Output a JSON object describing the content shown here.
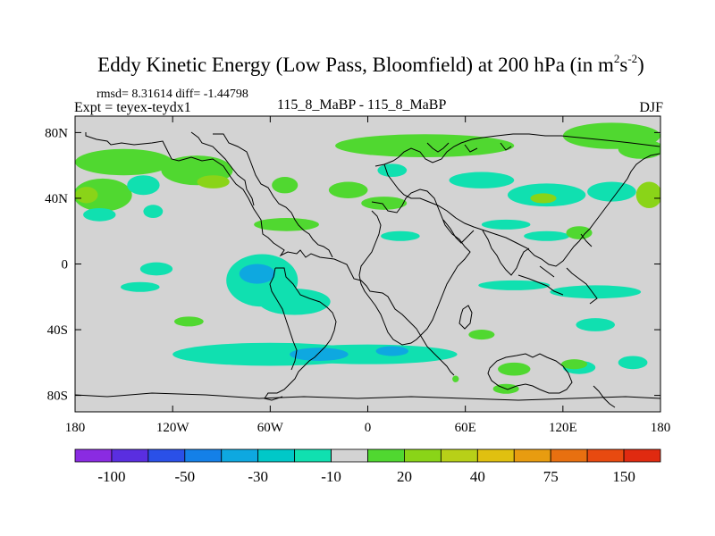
{
  "chart_data": {
    "type": "heatmap",
    "title_main": "Eddy Kinetic Energy (Low Pass, Bloomfield) at 200 hPa (in m",
    "title_sup1": "2",
    "title_mid": "s",
    "title_sup2": "-2",
    "title_end": ")",
    "stats": "rmsd= 8.31614 diff= -1.44798",
    "left_label": "Expt = teyex-teydx1",
    "center_label": "115_8_MaBP - 115_8_MaBP",
    "right_label": "DJF",
    "xlim": [
      -180,
      180
    ],
    "ylim": [
      -90,
      90
    ],
    "x_ticks": [
      {
        "value": -180,
        "label": "180"
      },
      {
        "value": -120,
        "label": "120W"
      },
      {
        "value": -60,
        "label": "60W"
      },
      {
        "value": 0,
        "label": "0"
      },
      {
        "value": 60,
        "label": "60E"
      },
      {
        "value": 120,
        "label": "120E"
      },
      {
        "value": 180,
        "label": "180"
      }
    ],
    "y_ticks": [
      {
        "value": 80,
        "label": "80N"
      },
      {
        "value": 40,
        "label": "40N"
      },
      {
        "value": 0,
        "label": "0"
      },
      {
        "value": -40,
        "label": "40S"
      },
      {
        "value": -80,
        "label": "80S"
      }
    ],
    "colorbar": {
      "colors": [
        "#8a2be2",
        "#5a2ee0",
        "#2a50e8",
        "#1480e8",
        "#0ea8e0",
        "#00c8c8",
        "#10e0b0",
        "#d3d3d3",
        "#50d830",
        "#8ad418",
        "#b8d018",
        "#e0c010",
        "#e89c10",
        "#e87010",
        "#e84a10",
        "#e02a10"
      ],
      "labels": [
        {
          "boundary": 1,
          "text": "-100"
        },
        {
          "boundary": 3,
          "text": "-50"
        },
        {
          "boundary": 5,
          "text": "-30"
        },
        {
          "boundary": 7,
          "text": "-10"
        },
        {
          "boundary": 9,
          "text": "20"
        },
        {
          "boundary": 11,
          "text": "40"
        },
        {
          "boundary": 13,
          "text": "75"
        },
        {
          "boundary": 15,
          "text": "150"
        }
      ]
    },
    "background_color": "#d3d3d3",
    "anomaly_regions": [
      {
        "lon": 35,
        "lat": 72,
        "rlon": 55,
        "rlat": 7,
        "color": "#50d830"
      },
      {
        "lon": 150,
        "lat": 78,
        "rlon": 30,
        "rlat": 8,
        "color": "#50d830"
      },
      {
        "lon": 168,
        "lat": 70,
        "rlon": 14,
        "rlat": 6,
        "color": "#50d830"
      },
      {
        "lon": -150,
        "lat": 62,
        "rlon": 30,
        "rlat": 8,
        "color": "#50d830"
      },
      {
        "lon": -105,
        "lat": 57,
        "rlon": 22,
        "rlat": 9,
        "color": "#50d830"
      },
      {
        "lon": -95,
        "lat": 50,
        "rlon": 10,
        "rlat": 4,
        "color": "#8ad418"
      },
      {
        "lon": -163,
        "lat": 42,
        "rlon": 18,
        "rlat": 10,
        "color": "#50d830"
      },
      {
        "lon": -173,
        "lat": 42,
        "rlon": 7,
        "rlat": 5,
        "color": "#8ad418"
      },
      {
        "lon": -138,
        "lat": 48,
        "rlon": 10,
        "rlat": 6,
        "color": "#10e0b0"
      },
      {
        "lon": -165,
        "lat": 30,
        "rlon": 10,
        "rlat": 4,
        "color": "#10e0b0"
      },
      {
        "lon": -132,
        "lat": 32,
        "rlon": 6,
        "rlat": 4,
        "color": "#10e0b0"
      },
      {
        "lon": -51,
        "lat": 48,
        "rlon": 8,
        "rlat": 5,
        "color": "#50d830"
      },
      {
        "lon": -12,
        "lat": 45,
        "rlon": 12,
        "rlat": 5,
        "color": "#50d830"
      },
      {
        "lon": 15,
        "lat": 57,
        "rlon": 9,
        "rlat": 4,
        "color": "#10e0b0"
      },
      {
        "lon": 70,
        "lat": 51,
        "rlon": 20,
        "rlat": 5,
        "color": "#10e0b0"
      },
      {
        "lon": 110,
        "lat": 42,
        "rlon": 24,
        "rlat": 7,
        "color": "#10e0b0"
      },
      {
        "lon": 108,
        "lat": 40,
        "rlon": 8,
        "rlat": 3,
        "color": "#8ad418"
      },
      {
        "lon": 150,
        "lat": 44,
        "rlon": 15,
        "rlat": 6,
        "color": "#10e0b0"
      },
      {
        "lon": 173,
        "lat": 42,
        "rlon": 8,
        "rlat": 8,
        "color": "#8ad418"
      },
      {
        "lon": -50,
        "lat": 24,
        "rlon": 20,
        "rlat": 4,
        "color": "#50d830"
      },
      {
        "lon": 10,
        "lat": 37,
        "rlon": 14,
        "rlat": 4,
        "color": "#50d830"
      },
      {
        "lon": 20,
        "lat": 17,
        "rlon": 12,
        "rlat": 3,
        "color": "#10e0b0"
      },
      {
        "lon": 110,
        "lat": 17,
        "rlon": 14,
        "rlat": 3,
        "color": "#10e0b0"
      },
      {
        "lon": 85,
        "lat": 24,
        "rlon": 15,
        "rlat": 3,
        "color": "#10e0b0"
      },
      {
        "lon": 130,
        "lat": 19,
        "rlon": 8,
        "rlat": 4,
        "color": "#50d830"
      },
      {
        "lon": -130,
        "lat": -3,
        "rlon": 10,
        "rlat": 4,
        "color": "#10e0b0"
      },
      {
        "lon": -140,
        "lat": -14,
        "rlon": 12,
        "rlat": 3,
        "color": "#10e0b0"
      },
      {
        "lon": -65,
        "lat": -10,
        "rlon": 22,
        "rlat": 16,
        "color": "#10e0b0"
      },
      {
        "lon": -68,
        "lat": -6,
        "rlon": 11,
        "rlat": 6,
        "color": "#0ea8e0"
      },
      {
        "lon": -45,
        "lat": -23,
        "rlon": 22,
        "rlat": 8,
        "color": "#10e0b0"
      },
      {
        "lon": -110,
        "lat": -35,
        "rlon": 9,
        "rlat": 3,
        "color": "#50d830"
      },
      {
        "lon": 90,
        "lat": -13,
        "rlon": 22,
        "rlat": 3,
        "color": "#10e0b0"
      },
      {
        "lon": 140,
        "lat": -17,
        "rlon": 28,
        "rlat": 4,
        "color": "#10e0b0"
      },
      {
        "lon": 140,
        "lat": -37,
        "rlon": 12,
        "rlat": 4,
        "color": "#10e0b0"
      },
      {
        "lon": 70,
        "lat": -43,
        "rlon": 8,
        "rlat": 3,
        "color": "#50d830"
      },
      {
        "lon": -60,
        "lat": -55,
        "rlon": 60,
        "rlat": 7,
        "color": "#10e0b0"
      },
      {
        "lon": 0,
        "lat": -55,
        "rlon": 55,
        "rlat": 6,
        "color": "#10e0b0"
      },
      {
        "lon": -30,
        "lat": -55,
        "rlon": 18,
        "rlat": 4,
        "color": "#0ea8e0"
      },
      {
        "lon": 15,
        "lat": -53,
        "rlon": 10,
        "rlat": 3,
        "color": "#0ea8e0"
      },
      {
        "lon": 90,
        "lat": -64,
        "rlon": 10,
        "rlat": 4,
        "color": "#50d830"
      },
      {
        "lon": 130,
        "lat": -63,
        "rlon": 10,
        "rlat": 4,
        "color": "#10e0b0"
      },
      {
        "lon": 163,
        "lat": -60,
        "rlon": 9,
        "rlat": 4,
        "color": "#10e0b0"
      },
      {
        "lon": 127,
        "lat": -61,
        "rlon": 8,
        "rlat": 3,
        "color": "#50d830"
      },
      {
        "lon": 85,
        "lat": -76,
        "rlon": 8,
        "rlat": 3,
        "color": "#50d830"
      },
      {
        "lon": 54,
        "lat": -70,
        "rlon": 2,
        "rlat": 2,
        "color": "#50d830"
      }
    ]
  }
}
